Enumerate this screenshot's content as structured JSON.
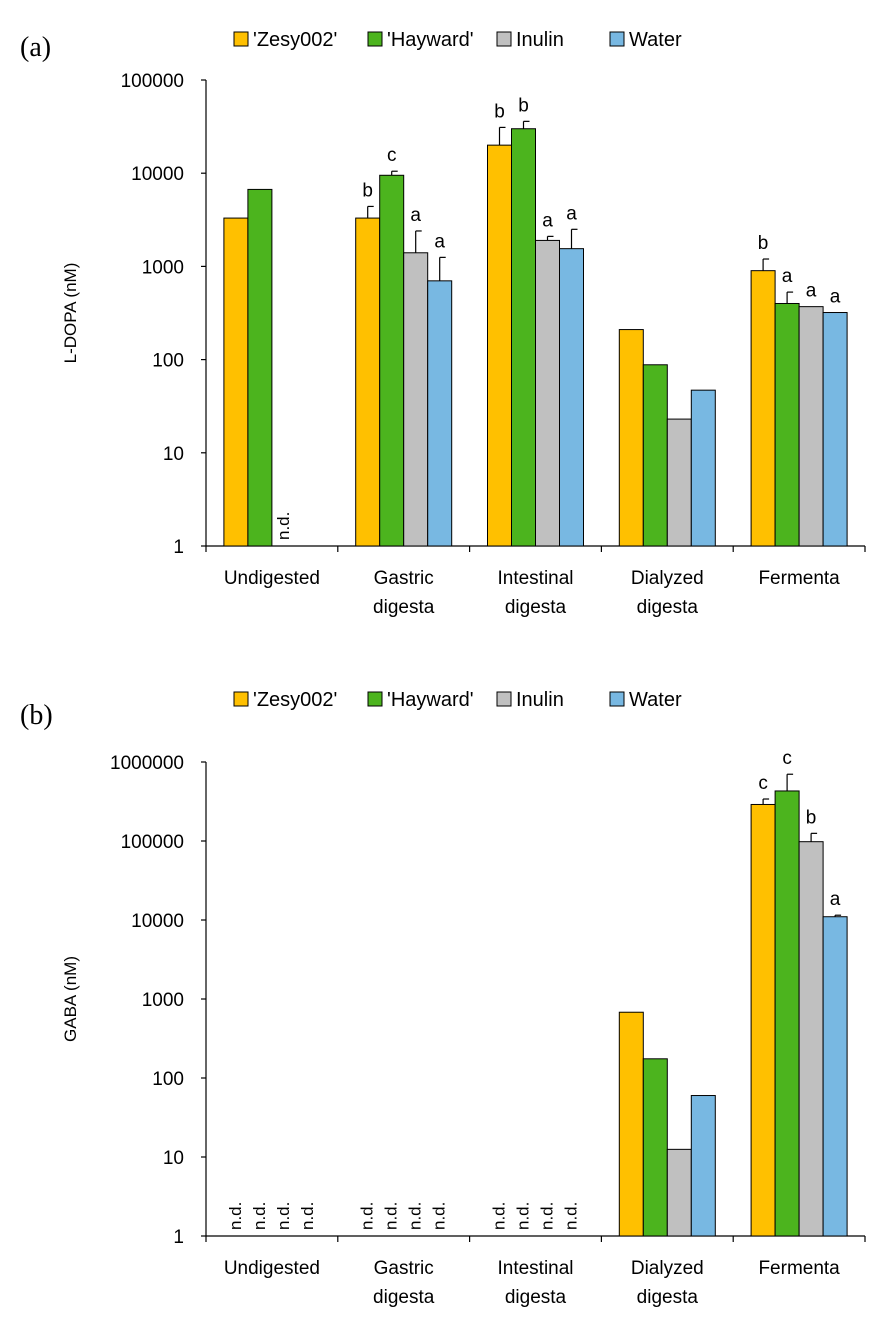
{
  "colors": {
    "Zesy002": "#FFC000",
    "Hayward": "#4CB41E",
    "Inulin": "#C0C0C0",
    "Water": "#78B8E2",
    "axis": "#000000"
  },
  "chart_data": [
    {
      "type": "bar",
      "panel_label": "(a)",
      "ylabel": "L-DOPA (nM)",
      "yscale": "log",
      "ylim": [
        1,
        100000
      ],
      "yticks": [
        "1",
        "10",
        "100",
        "1000",
        "10000",
        "100000"
      ],
      "categories": [
        "Undigested",
        "Gastric digesta",
        "Intestinal digesta",
        "Dialyzed digesta",
        "Fermenta"
      ],
      "category_lines": [
        [
          "Undigested"
        ],
        [
          "Gastric",
          "digesta"
        ],
        [
          "Intestinal",
          "digesta"
        ],
        [
          "Dialyzed",
          "digesta"
        ],
        [
          "Fermenta"
        ]
      ],
      "legend": [
        "'Zesy002'",
        "'Hayward'",
        "Inulin",
        "Water"
      ],
      "series": [
        {
          "name": "'Zesy002'",
          "key": "Zesy002",
          "values": [
            3300,
            3300,
            20000,
            210,
            900
          ],
          "errors": [
            null,
            4400,
            31000,
            null,
            1200
          ],
          "letters": [
            null,
            "b",
            "b",
            null,
            "b"
          ],
          "nd": [
            false,
            false,
            false,
            false,
            false
          ]
        },
        {
          "name": "'Hayward'",
          "key": "Hayward",
          "values": [
            6700,
            9500,
            30000,
            88,
            400
          ],
          "errors": [
            null,
            10500,
            36000,
            null,
            530
          ],
          "letters": [
            null,
            "c",
            "b",
            null,
            "a"
          ],
          "nd": [
            false,
            false,
            false,
            false,
            false
          ]
        },
        {
          "name": "Inulin",
          "key": "Inulin",
          "values": [
            null,
            1400,
            1900,
            23,
            370
          ],
          "errors": [
            null,
            2400,
            2100,
            null,
            null
          ],
          "letters": [
            null,
            "a",
            "a",
            null,
            "a"
          ],
          "nd": [
            true,
            false,
            false,
            false,
            false
          ]
        },
        {
          "name": "Water",
          "key": "Water",
          "values": [
            null,
            700,
            1550,
            47,
            320
          ],
          "errors": [
            null,
            1250,
            2500,
            null,
            null
          ],
          "letters": [
            null,
            "a",
            "a",
            null,
            "a"
          ],
          "nd": [
            false,
            false,
            false,
            false,
            false
          ]
        }
      ],
      "nd_label": "n.d."
    },
    {
      "type": "bar",
      "panel_label": "(b)",
      "ylabel": "GABA (nM)",
      "yscale": "log",
      "ylim": [
        1,
        1000000
      ],
      "yticks": [
        "1",
        "10",
        "100",
        "1000",
        "10000",
        "100000",
        "1000000"
      ],
      "categories": [
        "Undigested",
        "Gastric digesta",
        "Intestinal digesta",
        "Dialyzed digesta",
        "Fermenta"
      ],
      "category_lines": [
        [
          "Undigested"
        ],
        [
          "Gastric",
          "digesta"
        ],
        [
          "Intestinal",
          "digesta"
        ],
        [
          "Dialyzed",
          "digesta"
        ],
        [
          "Fermenta"
        ]
      ],
      "legend": [
        "'Zesy002'",
        "'Hayward'",
        "Inulin",
        "Water"
      ],
      "series": [
        {
          "name": "'Zesy002'",
          "key": "Zesy002",
          "values": [
            null,
            null,
            null,
            680,
            290000
          ],
          "errors": [
            null,
            null,
            null,
            null,
            340000
          ],
          "letters": [
            null,
            null,
            null,
            null,
            "c"
          ],
          "nd": [
            true,
            true,
            true,
            false,
            false
          ]
        },
        {
          "name": "'Hayward'",
          "key": "Hayward",
          "values": [
            null,
            null,
            null,
            175,
            430000
          ],
          "errors": [
            null,
            null,
            null,
            null,
            700000
          ],
          "letters": [
            null,
            null,
            null,
            null,
            "c"
          ],
          "nd": [
            true,
            true,
            true,
            false,
            false
          ]
        },
        {
          "name": "Inulin",
          "key": "Inulin",
          "values": [
            null,
            null,
            null,
            12.5,
            98000
          ],
          "errors": [
            null,
            null,
            null,
            null,
            125000
          ],
          "letters": [
            null,
            null,
            null,
            null,
            "b"
          ],
          "nd": [
            true,
            true,
            true,
            false,
            false
          ]
        },
        {
          "name": "Water",
          "key": "Water",
          "values": [
            null,
            null,
            null,
            60,
            11000
          ],
          "errors": [
            null,
            null,
            null,
            null,
            11500
          ],
          "letters": [
            null,
            null,
            null,
            null,
            "a"
          ],
          "nd": [
            true,
            true,
            true,
            false,
            false
          ]
        }
      ],
      "nd_label": "n.d."
    }
  ]
}
